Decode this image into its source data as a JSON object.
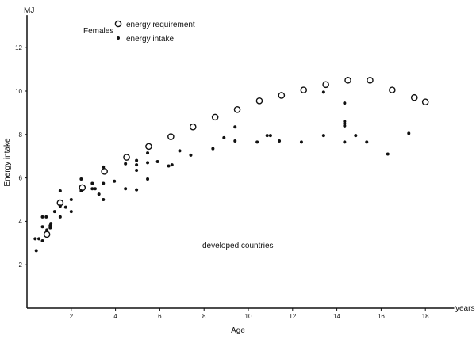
{
  "chart_data": {
    "type": "scatter",
    "title": "",
    "xlabel": "Age",
    "ylabel": "Energy intake",
    "x_unit": "years",
    "y_unit": "MJ",
    "xlim": [
      0,
      19.3
    ],
    "ylim": [
      0,
      13.5
    ],
    "x_ticks": [
      2,
      4,
      6,
      8,
      10,
      12,
      14,
      16,
      18
    ],
    "y_ticks": [
      2,
      4,
      6,
      8,
      10,
      12
    ],
    "grid": false,
    "legend": {
      "title": "Females",
      "placement": "top-left"
    },
    "annotation": "developed countries",
    "series": [
      {
        "name": "energy requirement",
        "marker": "open-circle",
        "points": [
          [
            0.9,
            3.4
          ],
          [
            1.5,
            4.85
          ],
          [
            2.5,
            5.55
          ],
          [
            3.5,
            6.3
          ],
          [
            4.5,
            6.95
          ],
          [
            5.5,
            7.45
          ],
          [
            6.5,
            7.9
          ],
          [
            7.5,
            8.35
          ],
          [
            8.5,
            8.8
          ],
          [
            9.5,
            9.15
          ],
          [
            10.5,
            9.55
          ],
          [
            11.5,
            9.8
          ],
          [
            12.5,
            10.05
          ],
          [
            13.5,
            10.3
          ],
          [
            14.5,
            10.5
          ],
          [
            15.5,
            10.5
          ],
          [
            16.5,
            10.05
          ],
          [
            17.5,
            9.7
          ],
          [
            18,
            9.5
          ]
        ]
      },
      {
        "name": "energy intake",
        "marker": "filled-dot",
        "points": [
          [
            0.37,
            3.2
          ],
          [
            0.54,
            3.2
          ],
          [
            0.7,
            3.1
          ],
          [
            0.42,
            2.65
          ],
          [
            0.7,
            3.75
          ],
          [
            0.7,
            4.2
          ],
          [
            0.87,
            4.2
          ],
          [
            0.9,
            3.6
          ],
          [
            1.05,
            3.7
          ],
          [
            1.05,
            3.8
          ],
          [
            1.08,
            3.9
          ],
          [
            1.25,
            4.45
          ],
          [
            1.5,
            5.4
          ],
          [
            1.5,
            4.7
          ],
          [
            1.5,
            4.2
          ],
          [
            1.75,
            4.65
          ],
          [
            2.0,
            5.0
          ],
          [
            2.0,
            4.45
          ],
          [
            2.45,
            5.95
          ],
          [
            2.45,
            5.4
          ],
          [
            2.95,
            5.75
          ],
          [
            2.95,
            5.5
          ],
          [
            3.08,
            5.5
          ],
          [
            3.25,
            5.25
          ],
          [
            3.45,
            5.75
          ],
          [
            3.45,
            5.0
          ],
          [
            3.45,
            6.5
          ],
          [
            3.95,
            5.85
          ],
          [
            4.45,
            6.65
          ],
          [
            4.45,
            5.5
          ],
          [
            4.95,
            6.8
          ],
          [
            4.95,
            6.6
          ],
          [
            4.95,
            6.35
          ],
          [
            4.95,
            5.45
          ],
          [
            5.45,
            7.15
          ],
          [
            5.45,
            6.7
          ],
          [
            5.45,
            5.95
          ],
          [
            5.9,
            6.75
          ],
          [
            6.4,
            6.55
          ],
          [
            6.55,
            6.6
          ],
          [
            6.9,
            7.25
          ],
          [
            7.4,
            7.05
          ],
          [
            8.4,
            7.35
          ],
          [
            8.9,
            7.85
          ],
          [
            9.4,
            8.35
          ],
          [
            9.4,
            7.7
          ],
          [
            10.4,
            7.65
          ],
          [
            10.85,
            7.95
          ],
          [
            11.0,
            7.95
          ],
          [
            11.4,
            7.7
          ],
          [
            12.4,
            7.65
          ],
          [
            13.4,
            9.95
          ],
          [
            13.4,
            7.95
          ],
          [
            14.35,
            9.45
          ],
          [
            14.35,
            8.6
          ],
          [
            14.35,
            8.5
          ],
          [
            14.35,
            8.4
          ],
          [
            14.35,
            7.65
          ],
          [
            14.85,
            7.95
          ],
          [
            15.35,
            7.65
          ],
          [
            16.3,
            7.1
          ],
          [
            17.25,
            8.05
          ]
        ]
      }
    ]
  }
}
